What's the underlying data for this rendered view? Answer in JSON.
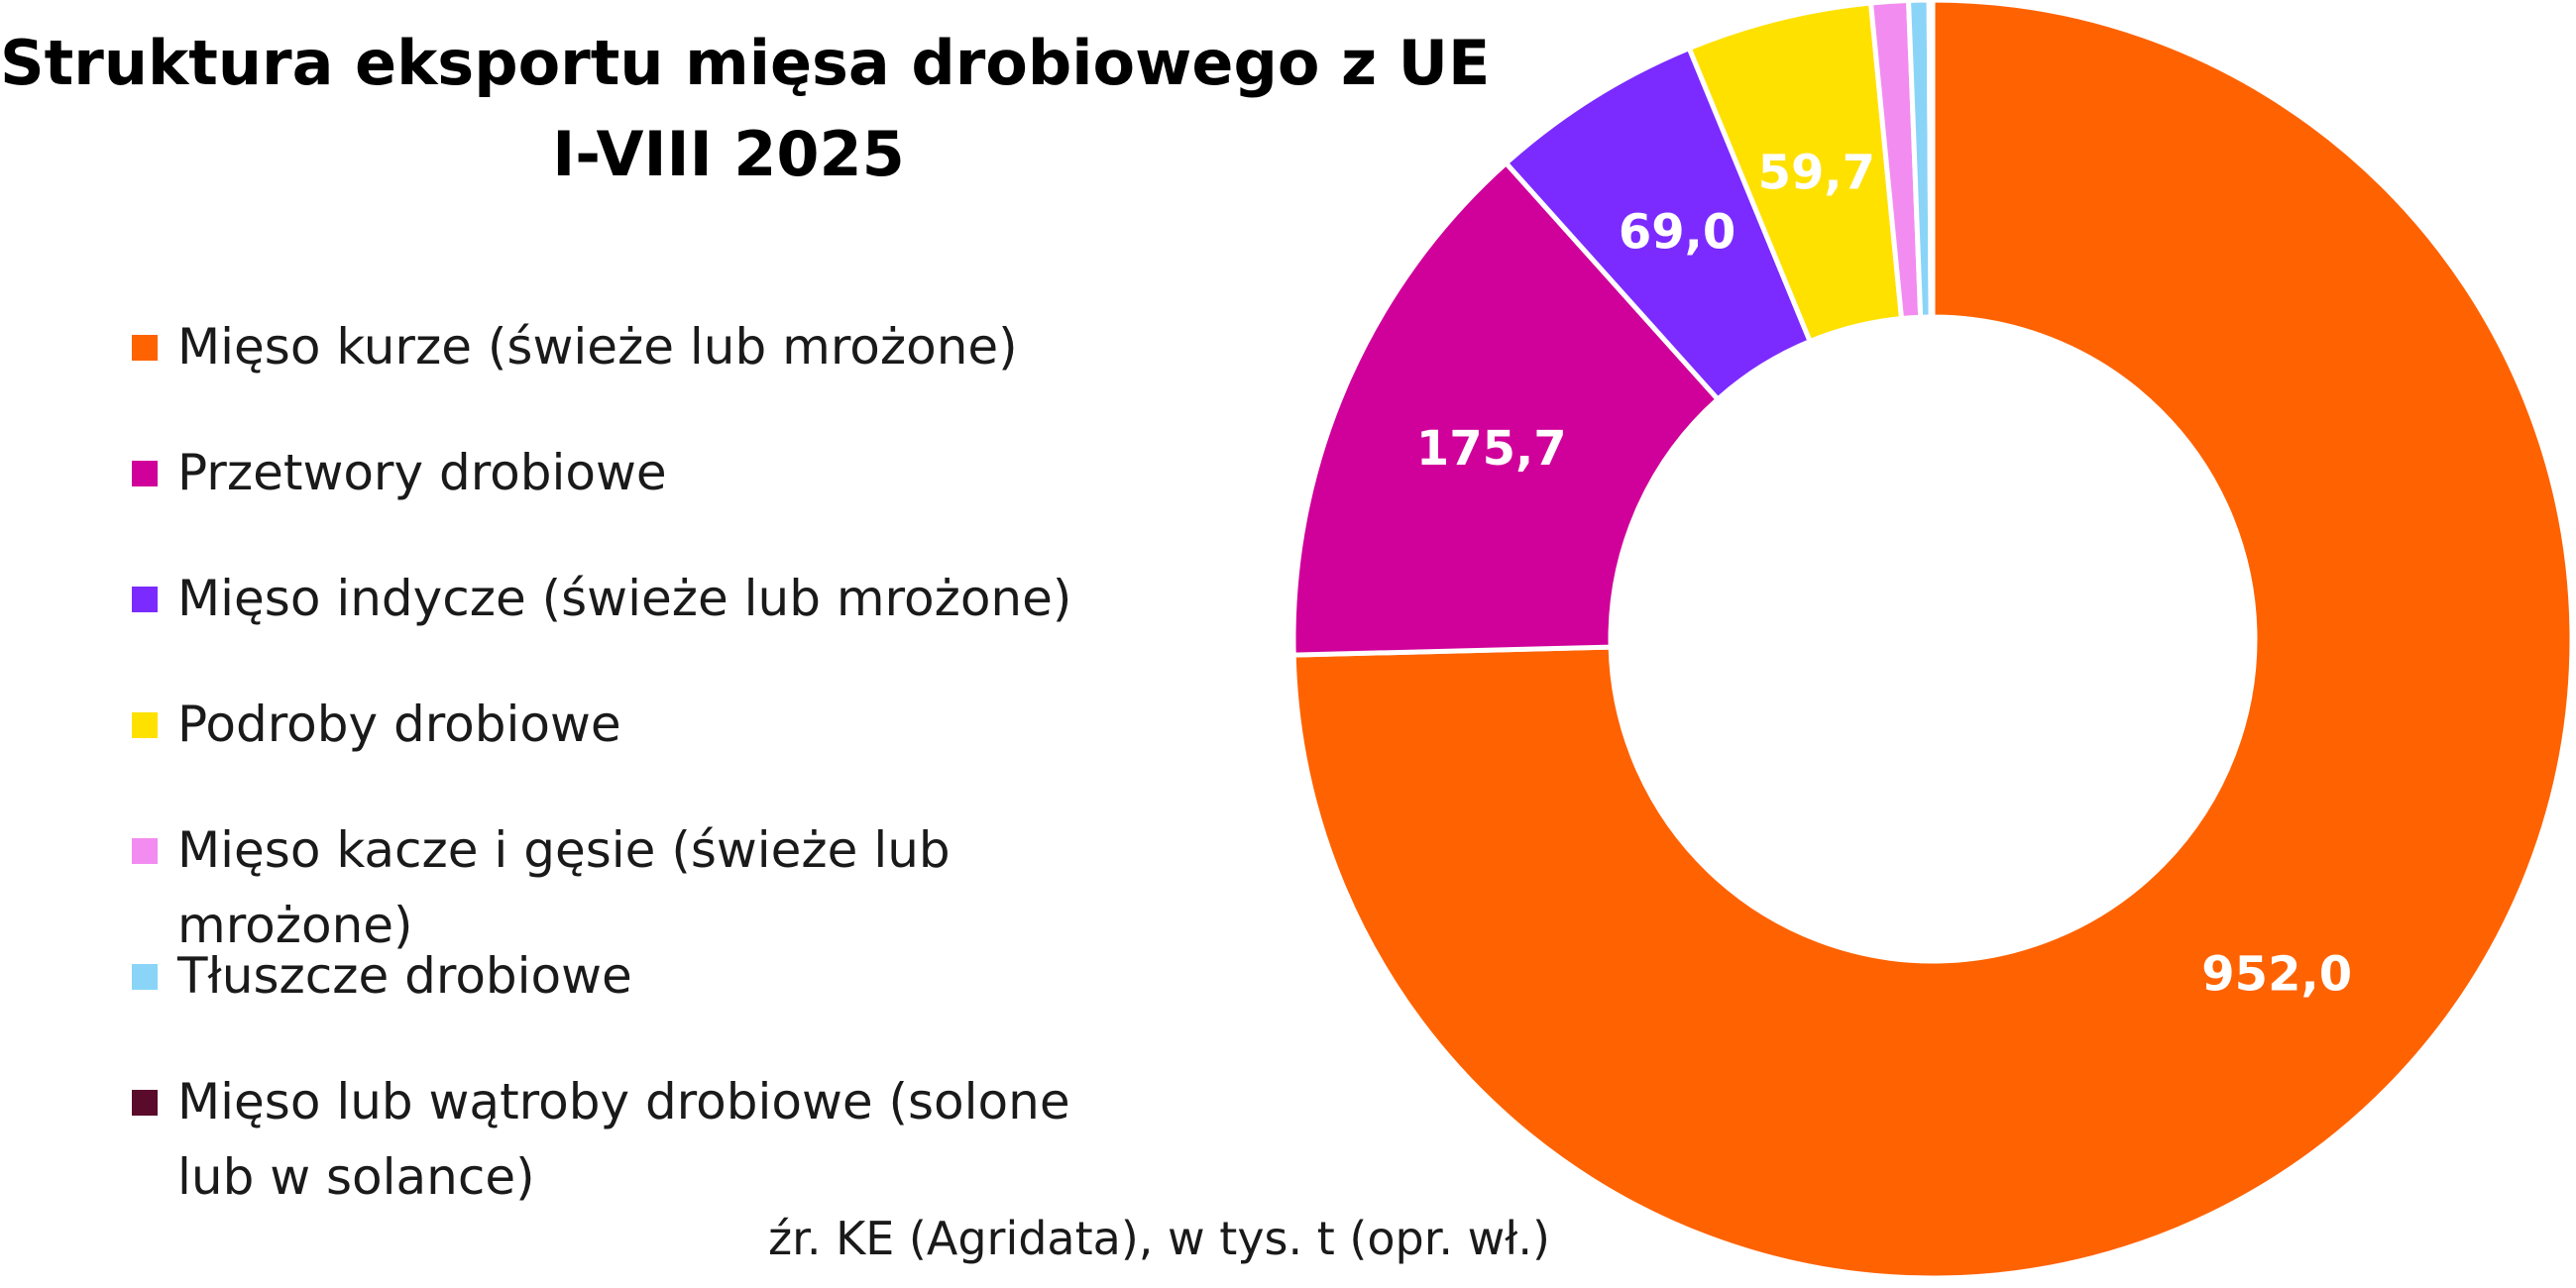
{
  "chart_data": {
    "type": "pie",
    "variant": "donut",
    "title": "Struktura eksportu mięsa drobiowego z UE",
    "subtitle": "I-VIII 2025",
    "categories": [
      "Mięso kurze (świeże lub mrożone)",
      "Przetwory drobiowe",
      "Mięso indycze (świeże lub mrożone)",
      "Podroby drobiowe",
      "Mięso kacze i gęsie (świeże lub mrożone)",
      "Tłuszcze drobiowe",
      "Mięso lub wątroby drobiowe (solone lub w solance)"
    ],
    "values": [
      952.0,
      175.7,
      69.0,
      59.7,
      12.0,
      6.5,
      1.2
    ],
    "data_labels": [
      "952,0",
      "175,7",
      "69,0",
      "59,7",
      "",
      "",
      ""
    ],
    "colors": [
      "#FF6200",
      "#D0009A",
      "#7B2BFF",
      "#FFE100",
      "#F28CF0",
      "#8AD4F8",
      "#5A0A2A"
    ],
    "legend_position": "left",
    "start_angle_deg": 0,
    "direction": "clockwise"
  },
  "source_note": "źr. KE (Agridata), w tys. t (opr. wł.)"
}
